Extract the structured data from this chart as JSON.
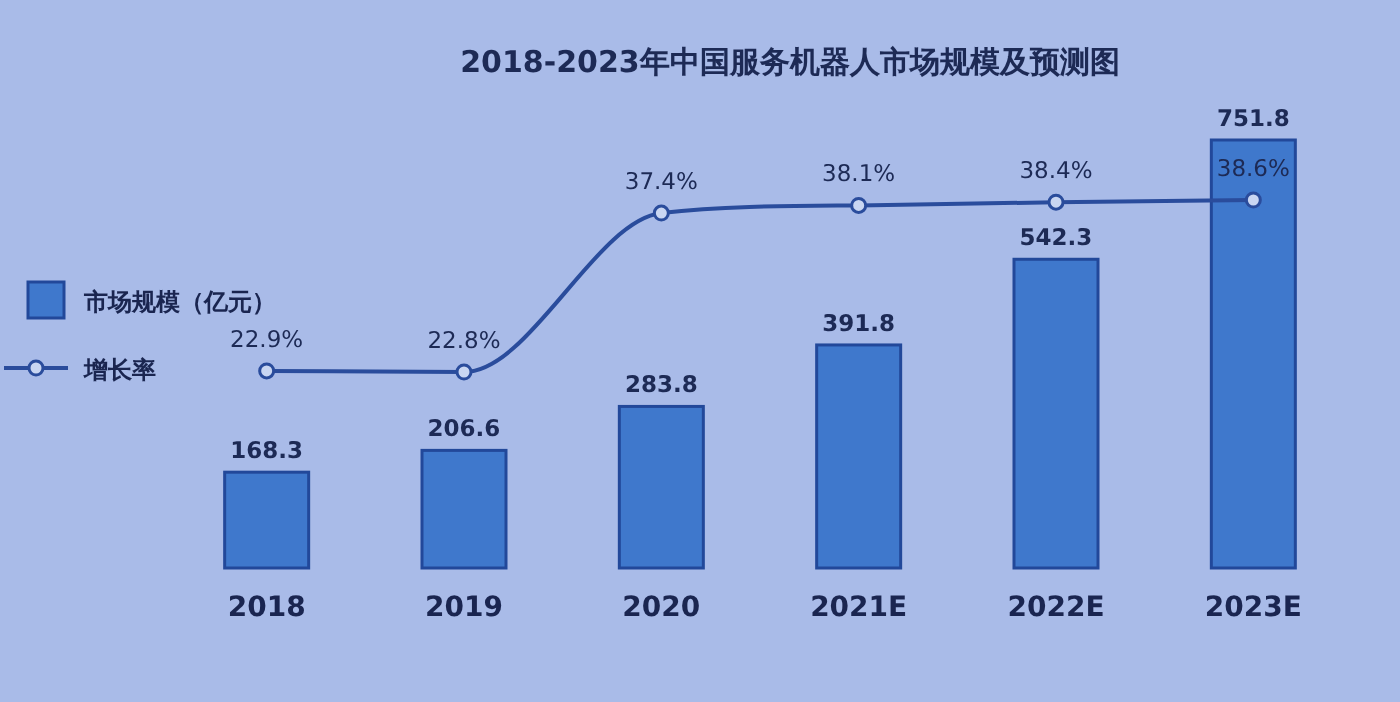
{
  "chart_data": {
    "type": "bar",
    "title": "2018-2023年中国服务机器人市场规模及预测图",
    "categories": [
      "2018",
      "2019",
      "2020",
      "2021E",
      "2022E",
      "2023E"
    ],
    "series": [
      {
        "name": "市场规模（亿元）",
        "color": "#3f78cc",
        "values": [
          168.3,
          206.6,
          283.8,
          391.8,
          542.3,
          751.8
        ],
        "value_labels": [
          "168.3",
          "206.6",
          "283.8",
          "391.8",
          "542.3",
          "751.8"
        ]
      },
      {
        "name": "增长率",
        "type": "line",
        "axis": "y2",
        "color": "#2a4c9c",
        "marker": "circle",
        "values": [
          22.9,
          22.8,
          37.4,
          38.1,
          38.4,
          38.6
        ],
        "value_labels": [
          "22.9%",
          "22.8%",
          "37.4%",
          "38.1%",
          "38.4%",
          "38.6%"
        ]
      }
    ],
    "legend": "left"
  }
}
